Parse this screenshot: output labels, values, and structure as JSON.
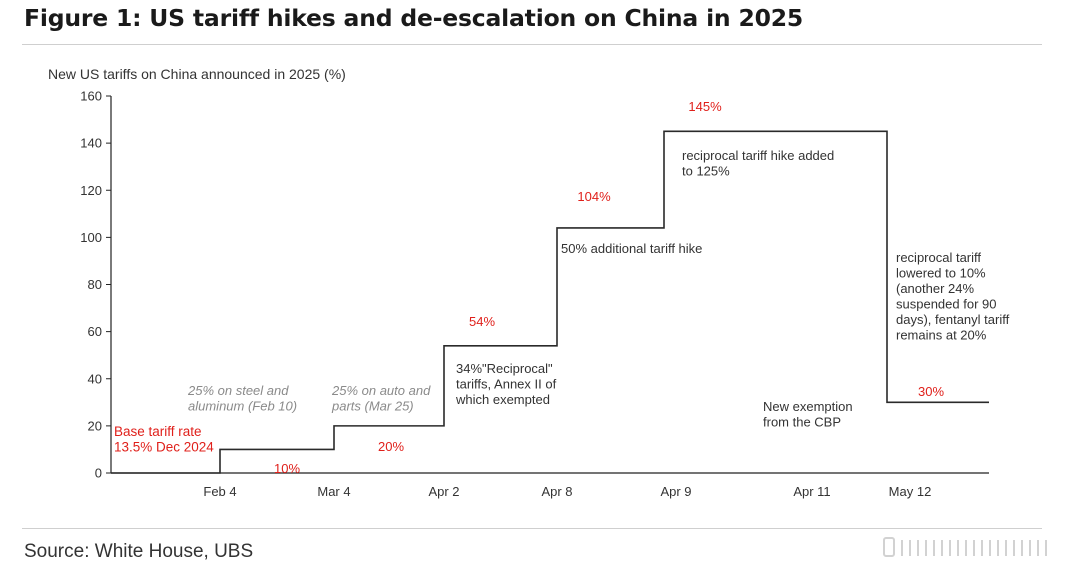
{
  "header": {
    "title": "Figure 1: US tariff hikes and de-escalation on China in 2025"
  },
  "footer": {
    "source": "Source: White House, UBS"
  },
  "chart_data": {
    "type": "line",
    "step": true,
    "title": "Figure 1: US tariff hikes and de-escalation on China in 2025",
    "ylabel": "New US tariffs on China announced in 2025 (%)",
    "xlabel": "",
    "ylim": [
      0,
      160
    ],
    "yticks": [
      0,
      20,
      40,
      60,
      80,
      100,
      120,
      140,
      160
    ],
    "grid": false,
    "categories": [
      "Feb 4",
      "Mar 4",
      "Apr 2",
      "Apr 8",
      "Apr 9",
      "Apr 11",
      "May 12"
    ],
    "series": [
      {
        "values": [
          10,
          20,
          54,
          104,
          145,
          145,
          30
        ]
      }
    ],
    "start_value": 0,
    "annotations": [
      {
        "id": "base",
        "lines": [
          "Base tariff rate",
          "13.5% Dec 2024"
        ],
        "style": "red"
      },
      {
        "id": "feb4-val",
        "lines": [
          "10%"
        ],
        "style": "red"
      },
      {
        "id": "mar4-val",
        "lines": [
          "20%"
        ],
        "style": "red"
      },
      {
        "id": "apr2-val",
        "lines": [
          "54%"
        ],
        "style": "red"
      },
      {
        "id": "apr8-val",
        "lines": [
          "104%"
        ],
        "style": "red"
      },
      {
        "id": "apr9-val",
        "lines": [
          "145%"
        ],
        "style": "red"
      },
      {
        "id": "may12-val",
        "lines": [
          "30%"
        ],
        "style": "red"
      },
      {
        "id": "steel",
        "lines": [
          "25% on steel and",
          "aluminum (Feb 10)"
        ],
        "style": "grey"
      },
      {
        "id": "auto",
        "lines": [
          "25% on auto and",
          "parts (Mar 25)"
        ],
        "style": "grey"
      },
      {
        "id": "reciprocal",
        "lines": [
          "34%\"Reciprocal\"",
          "tariffs, Annex II of",
          "which exempted"
        ],
        "style": "dark"
      },
      {
        "id": "fifty",
        "lines": [
          "50% additional tariff hike"
        ],
        "style": "dark"
      },
      {
        "id": "recip125",
        "lines": [
          "reciprocal tariff hike added",
          "to 125%"
        ],
        "style": "dark"
      },
      {
        "id": "cbp",
        "lines": [
          "New exemption",
          "from the CBP"
        ],
        "style": "dark"
      },
      {
        "id": "lowered",
        "lines": [
          "reciprocal tariff",
          "lowered to 10%",
          "(another 24%",
          "suspended for 90",
          "days), fentanyl tariff",
          "remains at 20%"
        ],
        "style": "dark"
      }
    ]
  }
}
